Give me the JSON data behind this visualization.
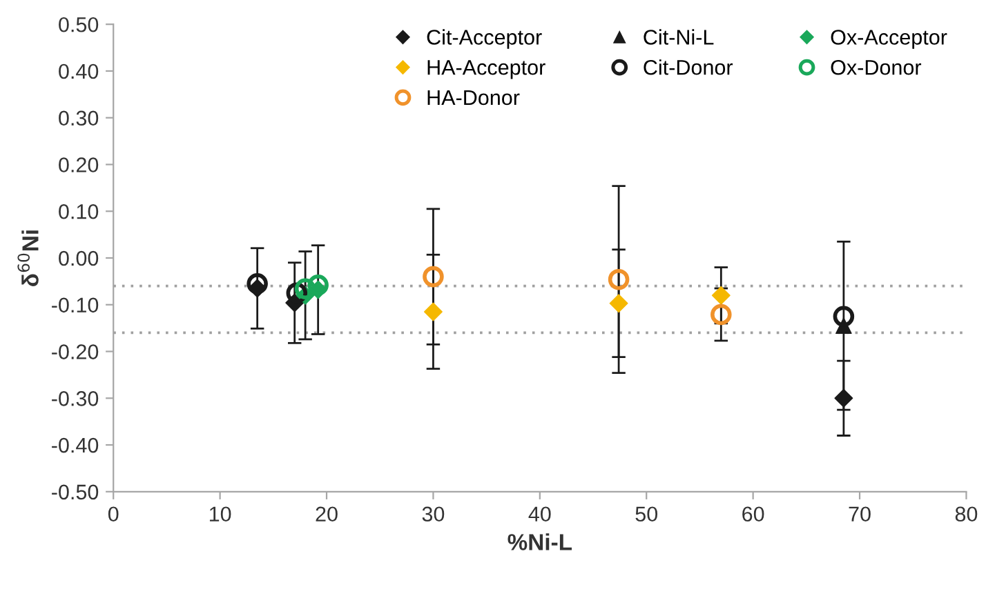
{
  "chart_data": {
    "type": "scatter",
    "xlabel": "%Ni-L",
    "ylabel": "δ$^{60}$Ni",
    "xlim": [
      0,
      80
    ],
    "xticks": [
      0,
      10,
      20,
      30,
      40,
      50,
      60,
      70,
      80
    ],
    "ylim": [
      -0.5,
      0.5
    ],
    "yticks": [
      {
        "value": -0.5,
        "label": "-0.50"
      },
      {
        "value": -0.4,
        "label": "-0.40"
      },
      {
        "value": -0.3,
        "label": "-0.30"
      },
      {
        "value": -0.2,
        "label": "-0.20"
      },
      {
        "value": -0.1,
        "label": "-0.10"
      },
      {
        "value": 0,
        "label": "0.00"
      },
      {
        "value": 0.1,
        "label": "0.10"
      },
      {
        "value": 0.2,
        "label": "0.20"
      },
      {
        "value": 0.3,
        "label": "0.30"
      },
      {
        "value": 0.4,
        "label": "0.40"
      },
      {
        "value": 0.5,
        "label": "0.50"
      }
    ],
    "grid": false,
    "legend": "top right",
    "ref_lines": [
      {
        "axis": "y",
        "value": -0.06,
        "color": "#a0a0a0",
        "line_style": "dotted"
      },
      {
        "axis": "y",
        "value": -0.16,
        "color": "#a0a0a0",
        "line_style": "dotted"
      }
    ],
    "series": [
      {
        "name": "Cit-Acceptor",
        "color": "#1a1a1a",
        "marker": "diamond",
        "x": [
          13.5,
          17,
          68.5
        ],
        "values": [
          -0.065,
          -0.096,
          -0.3
        ],
        "errors": [
          0.086,
          0.086,
          0.08
        ]
      },
      {
        "name": "Cit-Ni-L",
        "color": "#1a1a1a",
        "marker": "triangle",
        "x": [
          68.5
        ],
        "values": [
          -0.145
        ],
        "errors": [
          0.18
        ]
      },
      {
        "name": "Ox-Acceptor",
        "color": "#1aa85a",
        "marker": "diamond",
        "x": [
          18,
          19.2
        ],
        "values": [
          -0.08,
          -0.068
        ],
        "errors": [
          0.094,
          0.095
        ]
      },
      {
        "name": "HA-Acceptor",
        "color": "#f5b800",
        "marker": "diamond",
        "x": [
          30,
          47.4,
          57
        ],
        "values": [
          -0.115,
          -0.097,
          -0.08
        ],
        "errors": [
          0.122,
          0.115,
          0.06
        ]
      },
      {
        "name": "Cit-Donor",
        "color": "#1a1a1a",
        "marker": "circle",
        "x": [
          13.5,
          17.2,
          68.5
        ],
        "values": [
          -0.055,
          -0.075,
          -0.125
        ]
      },
      {
        "name": "Ox-Donor",
        "color": "#1aa85a",
        "marker": "circle",
        "x": [
          18,
          19.2
        ],
        "values": [
          -0.066,
          -0.058
        ]
      },
      {
        "name": "HA-Donor",
        "color": "#f0922b",
        "marker": "circle",
        "x": [
          30,
          47.4,
          57
        ],
        "values": [
          -0.04,
          -0.046,
          -0.121
        ],
        "errors": [
          0.145,
          0.2,
          0.056
        ]
      }
    ]
  }
}
